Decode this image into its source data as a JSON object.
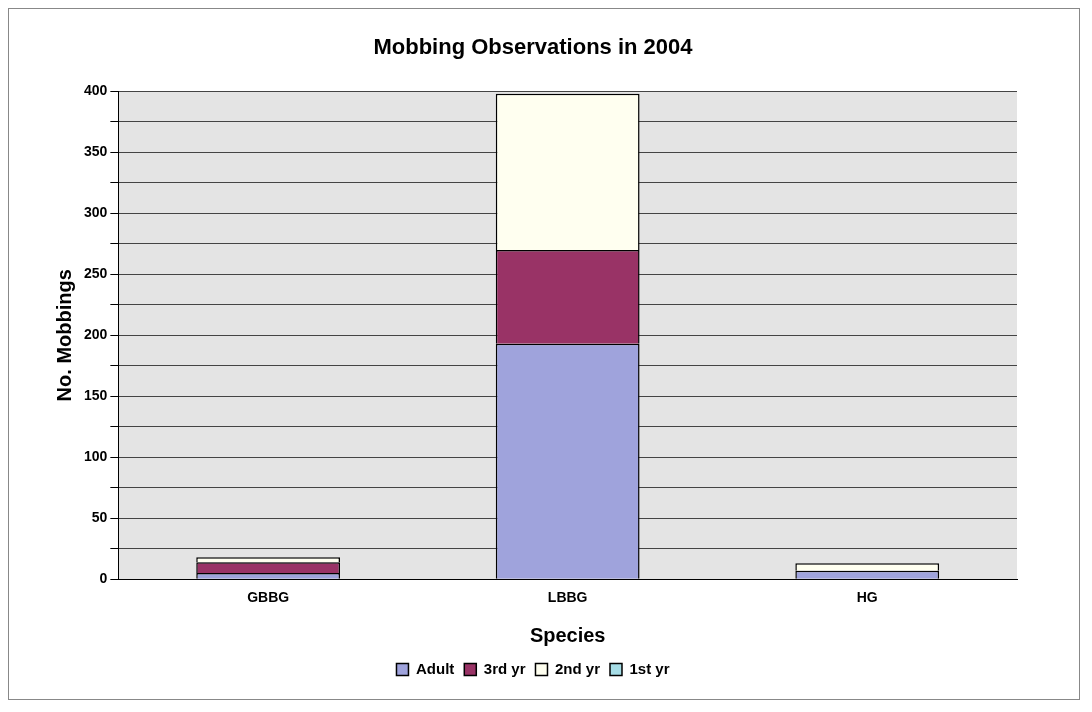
{
  "chart_data": {
    "type": "bar",
    "title": "Mobbing Observations in 2004",
    "xlabel": "Species",
    "ylabel": "No. Mobbings",
    "categories": [
      "GBBG",
      "LBBG",
      "HG"
    ],
    "stacked": true,
    "series": [
      {
        "name": "Adult",
        "color": "#9fa3dc",
        "values": [
          5,
          193,
          7
        ]
      },
      {
        "name": "3rd yr",
        "color": "#993366",
        "values": [
          9,
          77,
          0
        ]
      },
      {
        "name": "2nd yr",
        "color": "#fffff0",
        "values": [
          4,
          128,
          6
        ]
      },
      {
        "name": "1st yr",
        "color": "#a6dde6",
        "values": [
          0,
          0,
          0
        ]
      }
    ],
    "ylim": [
      0,
      400
    ],
    "yticks": [
      0,
      {
        "value": 25,
        "label": null
      },
      50,
      {
        "value": 75,
        "label": null
      },
      100,
      {
        "value": 125,
        "label": null
      },
      150,
      {
        "value": 175,
        "label": null
      },
      200,
      {
        "value": 225,
        "label": null
      },
      250,
      {
        "value": 275,
        "label": null
      },
      300,
      {
        "value": 325,
        "label": null
      },
      350,
      {
        "value": 375,
        "label": null
      },
      400
    ],
    "grid": "y",
    "legend": "bottom"
  }
}
